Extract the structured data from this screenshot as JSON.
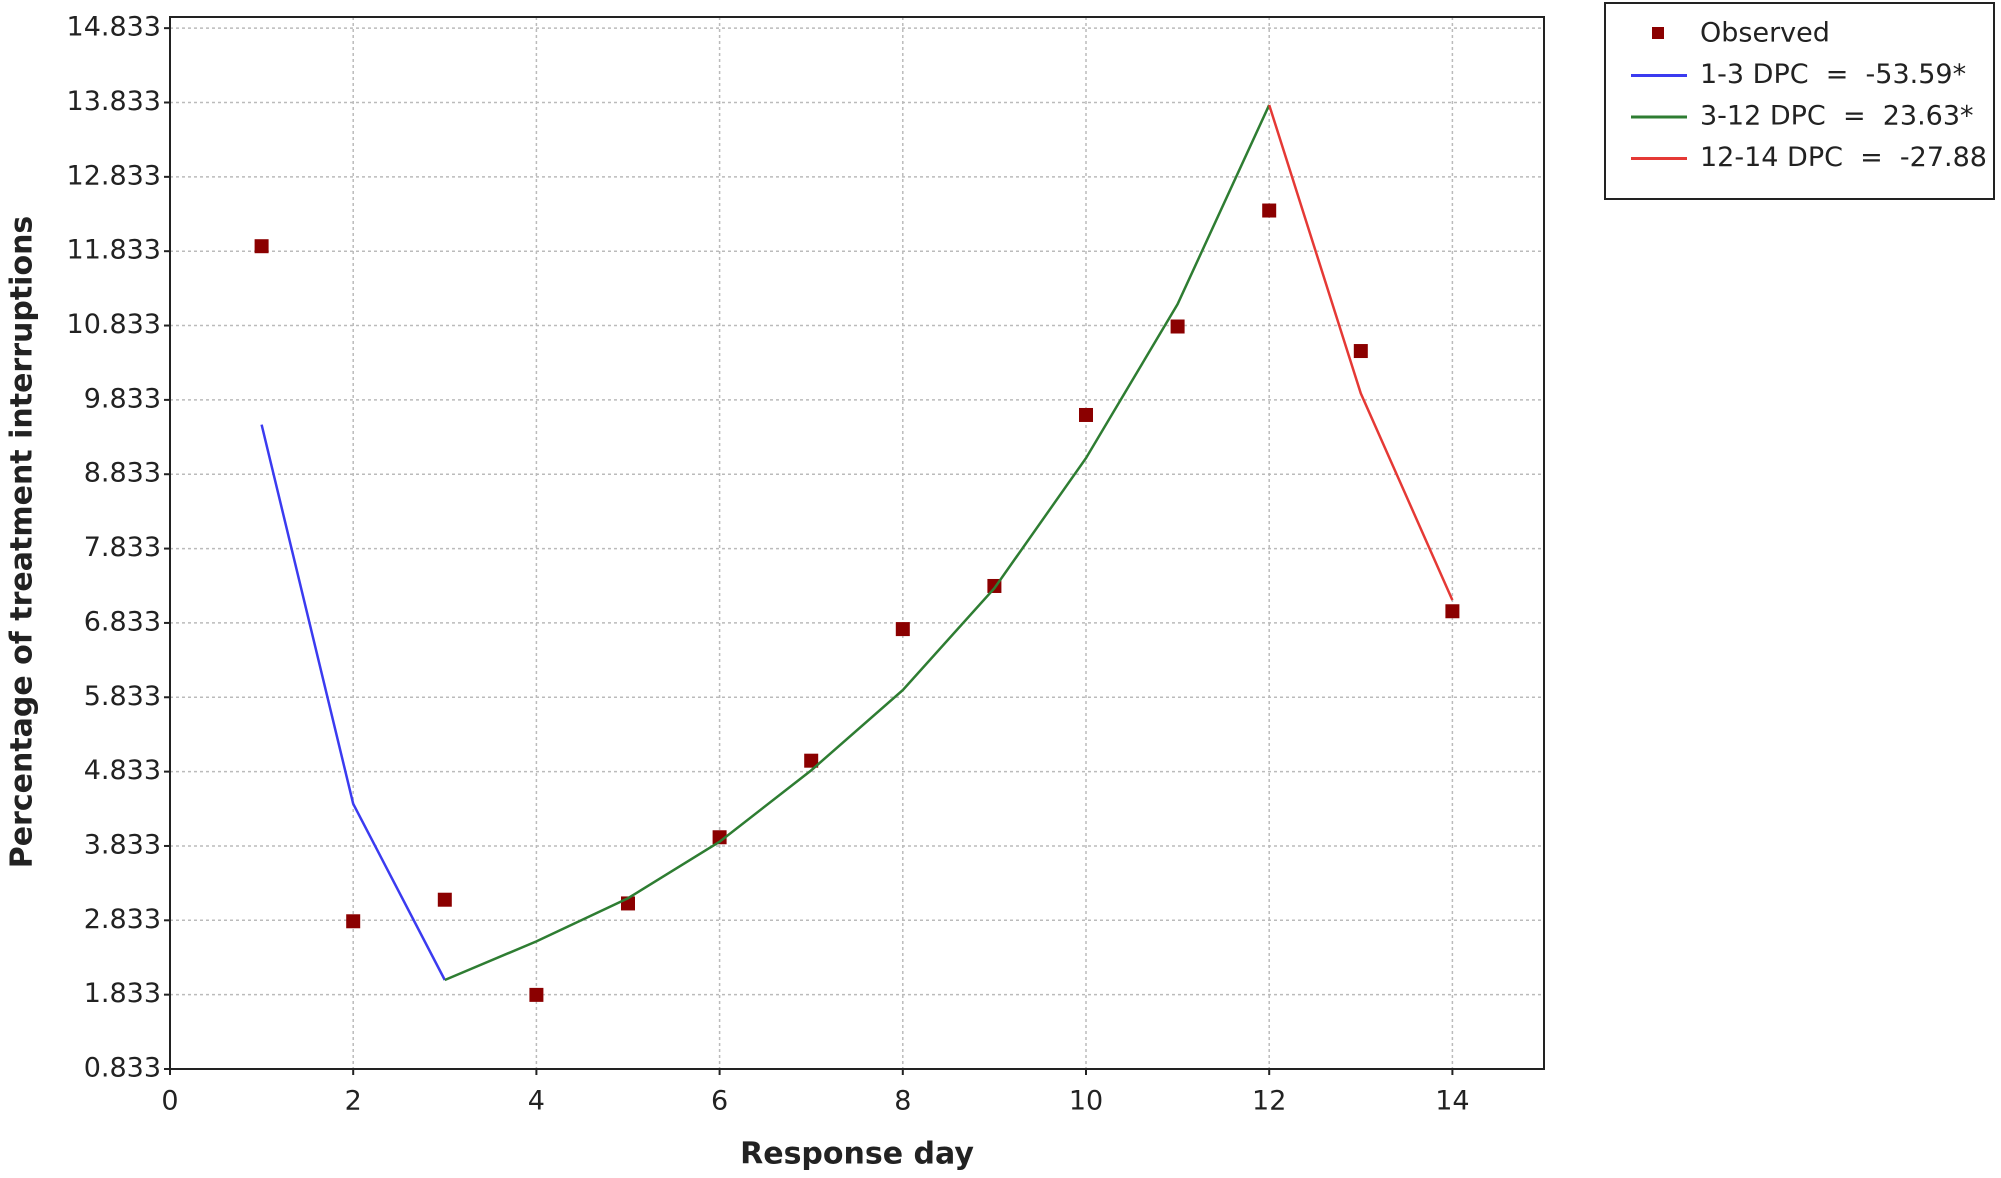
{
  "chart_data": {
    "type": "line",
    "xlabel": "Response day",
    "ylabel": "Percentage of treatment interruptions",
    "xlim": [
      0,
      15
    ],
    "xticks": [
      0,
      2,
      4,
      6,
      8,
      10,
      12,
      14
    ],
    "ylim": [
      0.833,
      14.983
    ],
    "yticks": [
      0.833,
      1.833,
      2.833,
      3.833,
      4.833,
      5.833,
      6.833,
      7.833,
      8.833,
      9.833,
      10.833,
      11.833,
      12.833,
      13.833,
      14.833
    ],
    "grid": true,
    "legend": "outside-top-right",
    "series": [
      {
        "name": "Observed",
        "type": "scatter",
        "color": "#8b0000",
        "x": [
          1,
          2,
          3,
          4,
          5,
          6,
          7,
          8,
          9,
          10,
          11,
          12,
          13,
          14
        ],
        "values": [
          11.9,
          2.82,
          3.11,
          1.83,
          3.06,
          3.95,
          4.98,
          6.75,
          7.33,
          9.63,
          10.82,
          12.38,
          10.49,
          6.99
        ]
      },
      {
        "name": "1-3 DPC  =  -53.59*",
        "type": "line",
        "color": "#3b3bf0",
        "x": [
          1,
          2,
          3
        ],
        "values": [
          9.5,
          4.4,
          2.03
        ]
      },
      {
        "name": "3-12 DPC  =  23.63*",
        "type": "line",
        "color": "#2e7d32",
        "x": [
          3,
          4,
          5,
          6,
          7,
          8,
          9,
          10,
          11,
          12
        ],
        "values": [
          2.03,
          2.55,
          3.13,
          3.89,
          4.85,
          5.93,
          7.3,
          9.05,
          11.12,
          13.8
        ]
      },
      {
        "name": "12-14 DPC  =  -27.88",
        "type": "line",
        "color": "#e53935",
        "x": [
          12,
          13,
          14
        ],
        "values": [
          13.8,
          9.92,
          7.14
        ]
      }
    ]
  }
}
